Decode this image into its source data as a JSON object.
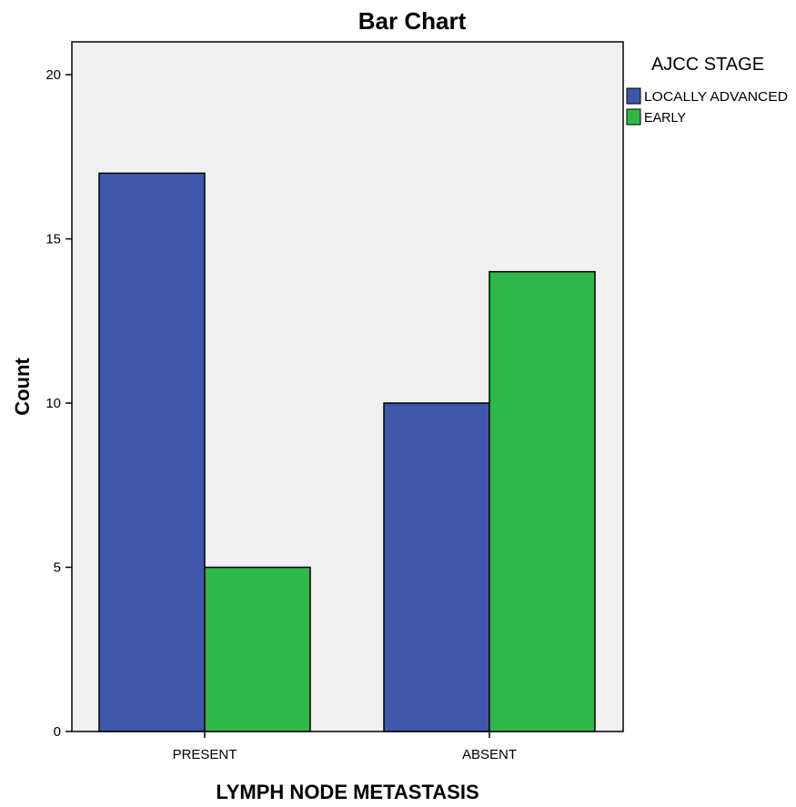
{
  "chart_data": {
    "type": "bar",
    "title": "Bar Chart",
    "xlabel": "LYMPH NODE METASTASIS",
    "ylabel": "Count",
    "categories": [
      "PRESENT",
      "ABSENT"
    ],
    "series": [
      {
        "name": "LOCALLY ADVANCED",
        "values": [
          17,
          10
        ],
        "color": "#3f56aa"
      },
      {
        "name": "EARLY",
        "values": [
          5,
          14
        ],
        "color": "#2fb84a"
      }
    ],
    "ylim": [
      0,
      21
    ],
    "yticks": [
      0,
      5,
      10,
      15,
      20
    ],
    "grid": false,
    "legend": {
      "title": "AJCC STAGE",
      "position": "top-right"
    },
    "plot_background": "#f0f0f0"
  }
}
